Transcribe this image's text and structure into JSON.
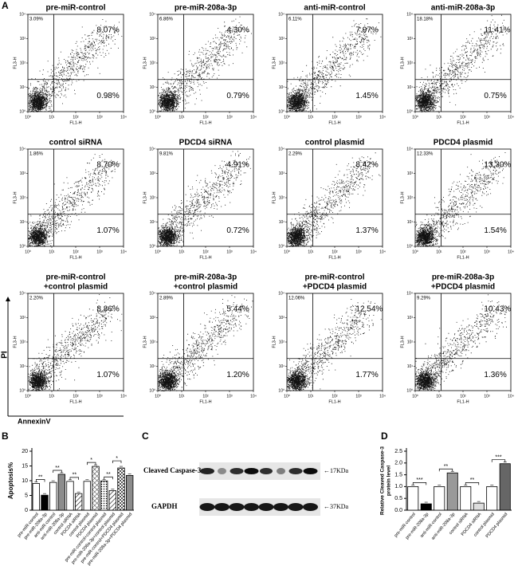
{
  "panel_labels": [
    "A",
    "B",
    "C",
    "D"
  ],
  "flow": {
    "x_label": "FL1-H",
    "y_label": "FL3-H",
    "lim": [
      1,
      10000
    ],
    "log": true,
    "ticks": [
      {
        "value": 1,
        "label": "10⁰"
      },
      {
        "value": 10,
        "label": "10¹"
      },
      {
        "value": 100,
        "label": "10²"
      },
      {
        "value": 1000,
        "label": "10³"
      },
      {
        "value": 10000,
        "label": "10⁴"
      }
    ],
    "axis_titles": {
      "y": "PI",
      "x": "AnnexinV"
    },
    "plots": [
      {
        "title": [
          "pre-miR-control"
        ],
        "ul": "3.09%",
        "ur": "8.07%",
        "lr": "0.98%"
      },
      {
        "title": [
          "pre-miR-208a-3p"
        ],
        "ul": "6.86%",
        "ur": "4.30%",
        "lr": "0.79%"
      },
      {
        "title": [
          "anti-miR-control"
        ],
        "ul": "6.11%",
        "ur": "7.97%",
        "lr": "1.45%"
      },
      {
        "title": [
          "anti-miR-208a-3p"
        ],
        "ul": "18.18%",
        "ur": "11.41%",
        "lr": "0.75%"
      },
      {
        "title": [
          "control siRNA"
        ],
        "ul": "1.86%",
        "ur": "8.70%",
        "lr": "1.07%"
      },
      {
        "title": [
          "PDCD4 siRNA"
        ],
        "ul": "9.81%",
        "ur": "4.91%",
        "lr": "0.72%"
      },
      {
        "title": [
          "control plasmid"
        ],
        "ul": "2.29%",
        "ur": "8.42%",
        "lr": "1.37%"
      },
      {
        "title": [
          "PDCD4 plasmid"
        ],
        "ul": "12.33%",
        "ur": "13.30%",
        "lr": "1.54%"
      },
      {
        "title": [
          "pre-miR-control",
          "+control plasmid"
        ],
        "ul": "2.20%",
        "ur": "8.86%",
        "lr": "1.07%"
      },
      {
        "title": [
          "pre-miR-208a-3p",
          "+control plasmid"
        ],
        "ul": "2.89%",
        "ur": "5.44%",
        "lr": "1.20%"
      },
      {
        "title": [
          "pre-miR-control",
          "+PDCD4 plasmid"
        ],
        "ul": "12.06%",
        "ur": "12.54%",
        "lr": "1.77%"
      },
      {
        "title": [
          "pre-miR-208a-3p",
          "+PDCD4 plasmid"
        ],
        "ul": "9.29%",
        "ur": "10.43%",
        "lr": "1.36%"
      }
    ]
  },
  "blot": {
    "rows": [
      {
        "label": "Cleaved Caspase-3",
        "size": "←17KDa"
      },
      {
        "label": "GAPDH",
        "size": "←37KDa"
      }
    ]
  },
  "chart_data": [
    {
      "type": "bar",
      "ylabel": [
        "Apoptosis%"
      ],
      "categories": [
        "pre-miR-control",
        "pre-miR-208a-3p",
        "anti-miR-control",
        "anti-miR-208a-3p",
        "control siRNA",
        "PDCD4 siRNA",
        "control plasmid",
        "PDCD4 plasmid",
        "pre-miR-control+control plasmid",
        "pre-miR-208a-3p+control plasmid",
        "pre-miR-control+PDCD4 plasmid",
        "pre-miR-208a-3p+PDCD4 plasmid"
      ],
      "values": [
        9.05,
        5.09,
        9.42,
        12.16,
        9.77,
        5.63,
        9.79,
        14.84,
        9.93,
        6.64,
        14.31,
        11.79
      ],
      "fills": [
        "#ffffff",
        "#000000",
        "#ffffff",
        "#8c8c8c",
        "#ffffff",
        "hatch",
        "#ffffff",
        "grid",
        "dots",
        "hatch",
        "check",
        "#8c8c8c"
      ],
      "ylim": [
        0,
        20
      ],
      "yticks": [
        0,
        5,
        10,
        15,
        20
      ],
      "significance": [
        "**",
        "**",
        "**",
        "*",
        "**",
        "*"
      ]
    },
    {
      "type": "bar",
      "ylabel": [
        "Relative Cleaved Caspase-3",
        "protein level"
      ],
      "categories": [
        "pre-miR-control",
        "pre-miR-208a-3p",
        "anti-miR-control",
        "anti-miR-208a-3p",
        "control siRNA",
        "PDCD4 siRNA",
        "control plasmid",
        "PDCD4 plasmid"
      ],
      "values": [
        1.0,
        0.27,
        1.0,
        1.58,
        1.0,
        0.3,
        1.0,
        1.97
      ],
      "fills": [
        "#ffffff",
        "#000000",
        "#ffffff",
        "#999999",
        "#ffffff",
        "#dddddd",
        "#ffffff",
        "#666666"
      ],
      "ylim": [
        0,
        2.5
      ],
      "yticks": [
        {
          "value": 0,
          "label": "0.0"
        },
        0.5,
        {
          "value": 1,
          "label": "1.0"
        },
        1.5,
        {
          "value": 2,
          "label": "2.0"
        },
        2.5
      ],
      "significance": [
        "***",
        "**",
        "**",
        "***"
      ]
    }
  ]
}
